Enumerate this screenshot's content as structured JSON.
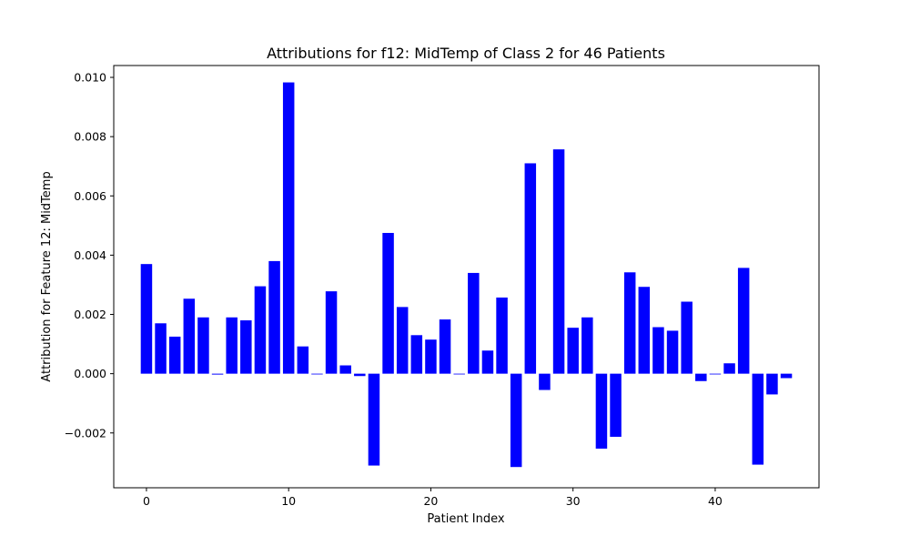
{
  "chart_data": {
    "type": "bar",
    "title": "Attributions for f12: MidTemp of Class 2 for 46 Patients",
    "xlabel": "Patient Index",
    "ylabel": "Attribution for Feature 12: MidTemp",
    "xlim": [
      -2.3,
      47.3
    ],
    "ylim": [
      -0.00385,
      0.0104
    ],
    "xticks": [
      0,
      10,
      20,
      30,
      40
    ],
    "xtick_labels": [
      "0",
      "10",
      "20",
      "30",
      "40"
    ],
    "yticks": [
      -0.002,
      0.0,
      0.002,
      0.004,
      0.006,
      0.008,
      0.01
    ],
    "ytick_labels": [
      "−0.002",
      "0.000",
      "0.002",
      "0.004",
      "0.006",
      "0.008",
      "0.010"
    ],
    "grid": false,
    "bar_color": "#0000ff",
    "x": [
      0,
      1,
      2,
      3,
      4,
      5,
      6,
      7,
      8,
      9,
      10,
      11,
      12,
      13,
      14,
      15,
      16,
      17,
      18,
      19,
      20,
      21,
      22,
      23,
      24,
      25,
      26,
      27,
      28,
      29,
      30,
      31,
      32,
      33,
      34,
      35,
      36,
      37,
      38,
      39,
      40,
      41,
      42,
      43,
      44,
      45
    ],
    "values": [
      0.0037,
      0.0017,
      0.00125,
      0.00253,
      0.0019,
      -3e-05,
      0.0019,
      0.0018,
      0.00295,
      0.0038,
      0.00983,
      0.00092,
      0.0,
      0.00278,
      0.00028,
      -8e-05,
      -0.0031,
      0.00475,
      0.00225,
      0.0013,
      0.00115,
      0.00183,
      0.0,
      0.0034,
      0.00078,
      0.00257,
      -0.00315,
      0.0071,
      -0.00055,
      0.00757,
      0.00155,
      0.0019,
      -0.00253,
      -0.00213,
      0.00342,
      0.00293,
      0.00157,
      0.00145,
      0.00243,
      -0.00025,
      0.0,
      0.00035,
      0.00357,
      -0.00307,
      -0.0007,
      -0.00015
    ]
  }
}
